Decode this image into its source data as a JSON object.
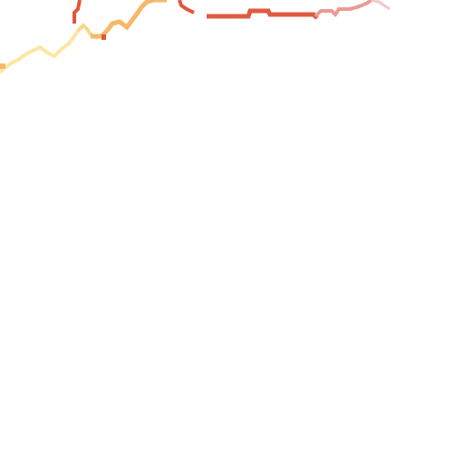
{
  "map": {
    "background": "#ffffff",
    "segments": [
      {
        "id": "west-yellow",
        "color": "#fbe7a0"
      },
      {
        "id": "mid-yellow",
        "color": "#f9d885"
      },
      {
        "id": "orange",
        "color": "#f6b86a"
      },
      {
        "id": "red-upper",
        "color": "#e0563a"
      },
      {
        "id": "red-main",
        "color": "#e05a40"
      },
      {
        "id": "pink",
        "color": "#ec9a96"
      },
      {
        "id": "light-pink",
        "color": "#f5c8c6"
      }
    ]
  }
}
